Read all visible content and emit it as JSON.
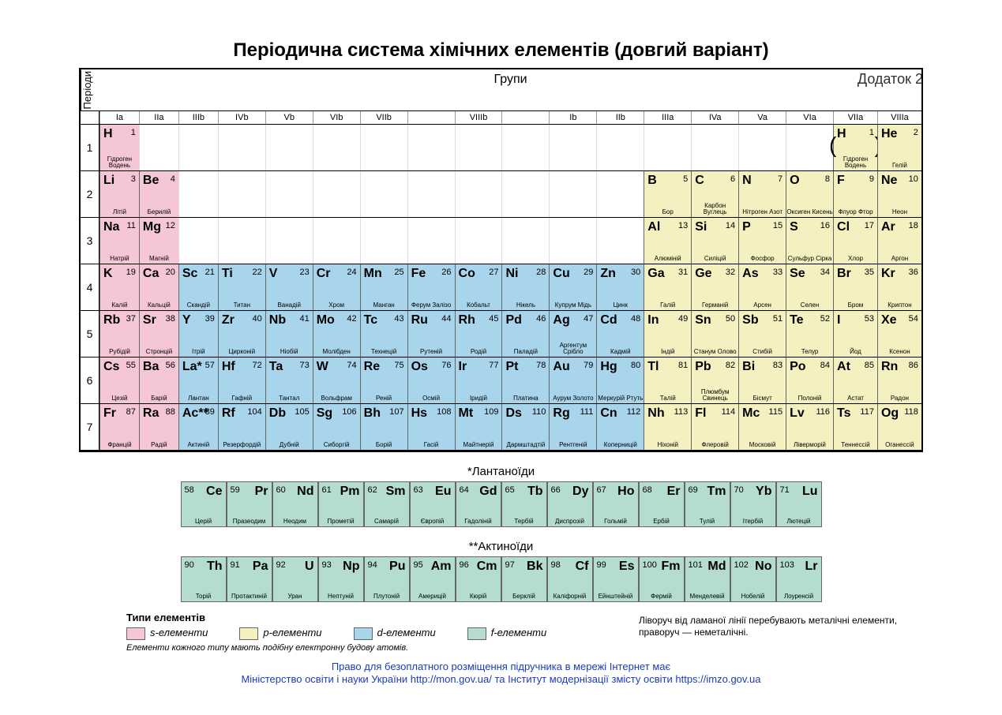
{
  "appendix": "Додаток 2",
  "title": "Періодична система хімічних елементів (довгий варіант)",
  "labels": {
    "periods": "Періоди",
    "groups": "Групи"
  },
  "colors": {
    "s": "#f4c6d7",
    "p": "#f5f0c0",
    "d": "#a8d5eb",
    "f": "#b4ddd0",
    "border": "#000000"
  },
  "group_headers": [
    "Ia",
    "IIa",
    "IIIb",
    "IVb",
    "Vb",
    "VIb",
    "VIIb",
    "",
    "VIIIb",
    "",
    "Ib",
    "IIb",
    "IIIa",
    "IVa",
    "Va",
    "VIa",
    "VIIa",
    "VIIIa"
  ],
  "group_widths": [
    50,
    50,
    50,
    60,
    60,
    60,
    60,
    60,
    60,
    60,
    60,
    60,
    60,
    60,
    60,
    60,
    56,
    56
  ],
  "periods": [
    1,
    2,
    3,
    4,
    5,
    6,
    7
  ],
  "elements": [
    {
      "p": 1,
      "g": 1,
      "z": 1,
      "sym": "H",
      "name": "Гідроген Водень",
      "cls": "s-el"
    },
    {
      "p": 1,
      "g": 17,
      "z": 1,
      "sym": "H",
      "name": "Гідроген Водень",
      "cls": "p-el",
      "paren": true
    },
    {
      "p": 1,
      "g": 18,
      "z": 2,
      "sym": "He",
      "name": "Гелій",
      "cls": "p-el"
    },
    {
      "p": 2,
      "g": 1,
      "z": 3,
      "sym": "Li",
      "name": "Літій",
      "cls": "s-el"
    },
    {
      "p": 2,
      "g": 2,
      "z": 4,
      "sym": "Be",
      "name": "Берилій",
      "cls": "s-el"
    },
    {
      "p": 2,
      "g": 13,
      "z": 5,
      "sym": "B",
      "name": "Бор",
      "cls": "p-el"
    },
    {
      "p": 2,
      "g": 14,
      "z": 6,
      "sym": "C",
      "name": "Карбон Вуглець",
      "cls": "p-el"
    },
    {
      "p": 2,
      "g": 15,
      "z": 7,
      "sym": "N",
      "name": "Нітроген Азот",
      "cls": "p-el"
    },
    {
      "p": 2,
      "g": 16,
      "z": 8,
      "sym": "O",
      "name": "Оксиген Кисень",
      "cls": "p-el"
    },
    {
      "p": 2,
      "g": 17,
      "z": 9,
      "sym": "F",
      "name": "Флуор Фтор",
      "cls": "p-el"
    },
    {
      "p": 2,
      "g": 18,
      "z": 10,
      "sym": "Ne",
      "name": "Неон",
      "cls": "p-el"
    },
    {
      "p": 3,
      "g": 1,
      "z": 11,
      "sym": "Na",
      "name": "Натрій",
      "cls": "s-el"
    },
    {
      "p": 3,
      "g": 2,
      "z": 12,
      "sym": "Mg",
      "name": "Магній",
      "cls": "s-el"
    },
    {
      "p": 3,
      "g": 13,
      "z": 13,
      "sym": "Al",
      "name": "Алюміній",
      "cls": "p-el"
    },
    {
      "p": 3,
      "g": 14,
      "z": 14,
      "sym": "Si",
      "name": "Силіцій",
      "cls": "p-el"
    },
    {
      "p": 3,
      "g": 15,
      "z": 15,
      "sym": "P",
      "name": "Фосфор",
      "cls": "p-el"
    },
    {
      "p": 3,
      "g": 16,
      "z": 16,
      "sym": "S",
      "name": "Сульфур Сірка",
      "cls": "p-el"
    },
    {
      "p": 3,
      "g": 17,
      "z": 17,
      "sym": "Cl",
      "name": "Хлор",
      "cls": "p-el"
    },
    {
      "p": 3,
      "g": 18,
      "z": 18,
      "sym": "Ar",
      "name": "Аргон",
      "cls": "p-el"
    },
    {
      "p": 4,
      "g": 1,
      "z": 19,
      "sym": "K",
      "name": "Калій",
      "cls": "s-el"
    },
    {
      "p": 4,
      "g": 2,
      "z": 20,
      "sym": "Ca",
      "name": "Кальцій",
      "cls": "s-el"
    },
    {
      "p": 4,
      "g": 3,
      "z": 21,
      "sym": "Sc",
      "name": "Скандій",
      "cls": "d-el"
    },
    {
      "p": 4,
      "g": 4,
      "z": 22,
      "sym": "Ti",
      "name": "Титан",
      "cls": "d-el"
    },
    {
      "p": 4,
      "g": 5,
      "z": 23,
      "sym": "V",
      "name": "Ванадій",
      "cls": "d-el"
    },
    {
      "p": 4,
      "g": 6,
      "z": 24,
      "sym": "Cr",
      "name": "Хром",
      "cls": "d-el"
    },
    {
      "p": 4,
      "g": 7,
      "z": 25,
      "sym": "Mn",
      "name": "Манган",
      "cls": "d-el"
    },
    {
      "p": 4,
      "g": 8,
      "z": 26,
      "sym": "Fe",
      "name": "Ферум Залізо",
      "cls": "d-el"
    },
    {
      "p": 4,
      "g": 9,
      "z": 27,
      "sym": "Co",
      "name": "Кобальт",
      "cls": "d-el"
    },
    {
      "p": 4,
      "g": 10,
      "z": 28,
      "sym": "Ni",
      "name": "Нікель",
      "cls": "d-el"
    },
    {
      "p": 4,
      "g": 11,
      "z": 29,
      "sym": "Cu",
      "name": "Купрум Мідь",
      "cls": "d-el"
    },
    {
      "p": 4,
      "g": 12,
      "z": 30,
      "sym": "Zn",
      "name": "Цинк",
      "cls": "d-el"
    },
    {
      "p": 4,
      "g": 13,
      "z": 31,
      "sym": "Ga",
      "name": "Галій",
      "cls": "p-el"
    },
    {
      "p": 4,
      "g": 14,
      "z": 32,
      "sym": "Ge",
      "name": "Германій",
      "cls": "p-el"
    },
    {
      "p": 4,
      "g": 15,
      "z": 33,
      "sym": "As",
      "name": "Арсен",
      "cls": "p-el"
    },
    {
      "p": 4,
      "g": 16,
      "z": 34,
      "sym": "Se",
      "name": "Селен",
      "cls": "p-el"
    },
    {
      "p": 4,
      "g": 17,
      "z": 35,
      "sym": "Br",
      "name": "Бром",
      "cls": "p-el"
    },
    {
      "p": 4,
      "g": 18,
      "z": 36,
      "sym": "Kr",
      "name": "Криптон",
      "cls": "p-el"
    },
    {
      "p": 5,
      "g": 1,
      "z": 37,
      "sym": "Rb",
      "name": "Рубідій",
      "cls": "s-el"
    },
    {
      "p": 5,
      "g": 2,
      "z": 38,
      "sym": "Sr",
      "name": "Стронцій",
      "cls": "s-el"
    },
    {
      "p": 5,
      "g": 3,
      "z": 39,
      "sym": "Y",
      "name": "Ітрій",
      "cls": "d-el"
    },
    {
      "p": 5,
      "g": 4,
      "z": 40,
      "sym": "Zr",
      "name": "Цирконій",
      "cls": "d-el"
    },
    {
      "p": 5,
      "g": 5,
      "z": 41,
      "sym": "Nb",
      "name": "Ніобій",
      "cls": "d-el"
    },
    {
      "p": 5,
      "g": 6,
      "z": 42,
      "sym": "Mo",
      "name": "Молібден",
      "cls": "d-el"
    },
    {
      "p": 5,
      "g": 7,
      "z": 43,
      "sym": "Tc",
      "name": "Технецій",
      "cls": "d-el"
    },
    {
      "p": 5,
      "g": 8,
      "z": 44,
      "sym": "Ru",
      "name": "Рутеній",
      "cls": "d-el"
    },
    {
      "p": 5,
      "g": 9,
      "z": 45,
      "sym": "Rh",
      "name": "Родій",
      "cls": "d-el"
    },
    {
      "p": 5,
      "g": 10,
      "z": 46,
      "sym": "Pd",
      "name": "Паладій",
      "cls": "d-el"
    },
    {
      "p": 5,
      "g": 11,
      "z": 47,
      "sym": "Ag",
      "name": "Аргентум Срібло",
      "cls": "d-el"
    },
    {
      "p": 5,
      "g": 12,
      "z": 48,
      "sym": "Cd",
      "name": "Кадмій",
      "cls": "d-el"
    },
    {
      "p": 5,
      "g": 13,
      "z": 49,
      "sym": "In",
      "name": "Індій",
      "cls": "p-el"
    },
    {
      "p": 5,
      "g": 14,
      "z": 50,
      "sym": "Sn",
      "name": "Станум Олово",
      "cls": "p-el"
    },
    {
      "p": 5,
      "g": 15,
      "z": 51,
      "sym": "Sb",
      "name": "Стибій",
      "cls": "p-el"
    },
    {
      "p": 5,
      "g": 16,
      "z": 52,
      "sym": "Te",
      "name": "Телур",
      "cls": "p-el"
    },
    {
      "p": 5,
      "g": 17,
      "z": 53,
      "sym": "I",
      "name": "Йод",
      "cls": "p-el"
    },
    {
      "p": 5,
      "g": 18,
      "z": 54,
      "sym": "Xe",
      "name": "Ксенон",
      "cls": "p-el"
    },
    {
      "p": 6,
      "g": 1,
      "z": 55,
      "sym": "Cs",
      "name": "Цезій",
      "cls": "s-el"
    },
    {
      "p": 6,
      "g": 2,
      "z": 56,
      "sym": "Ba",
      "name": "Барій",
      "cls": "s-el"
    },
    {
      "p": 6,
      "g": 3,
      "z": 57,
      "sym": "La*",
      "name": "Лантан",
      "cls": "d-el"
    },
    {
      "p": 6,
      "g": 4,
      "z": 72,
      "sym": "Hf",
      "name": "Гафній",
      "cls": "d-el"
    },
    {
      "p": 6,
      "g": 5,
      "z": 73,
      "sym": "Ta",
      "name": "Тантал",
      "cls": "d-el"
    },
    {
      "p": 6,
      "g": 6,
      "z": 74,
      "sym": "W",
      "name": "Вольфрам",
      "cls": "d-el"
    },
    {
      "p": 6,
      "g": 7,
      "z": 75,
      "sym": "Re",
      "name": "Реній",
      "cls": "d-el"
    },
    {
      "p": 6,
      "g": 8,
      "z": 76,
      "sym": "Os",
      "name": "Осмій",
      "cls": "d-el"
    },
    {
      "p": 6,
      "g": 9,
      "z": 77,
      "sym": "Ir",
      "name": "Іридій",
      "cls": "d-el"
    },
    {
      "p": 6,
      "g": 10,
      "z": 78,
      "sym": "Pt",
      "name": "Платина",
      "cls": "d-el"
    },
    {
      "p": 6,
      "g": 11,
      "z": 79,
      "sym": "Au",
      "name": "Аурум Золото",
      "cls": "d-el"
    },
    {
      "p": 6,
      "g": 12,
      "z": 80,
      "sym": "Hg",
      "name": "Меркурій Ртуть",
      "cls": "d-el"
    },
    {
      "p": 6,
      "g": 13,
      "z": 81,
      "sym": "Tl",
      "name": "Талій",
      "cls": "p-el"
    },
    {
      "p": 6,
      "g": 14,
      "z": 82,
      "sym": "Pb",
      "name": "Плюмбум Свинець",
      "cls": "p-el"
    },
    {
      "p": 6,
      "g": 15,
      "z": 83,
      "sym": "Bi",
      "name": "Бісмут",
      "cls": "p-el"
    },
    {
      "p": 6,
      "g": 16,
      "z": 84,
      "sym": "Po",
      "name": "Полоній",
      "cls": "p-el"
    },
    {
      "p": 6,
      "g": 17,
      "z": 85,
      "sym": "At",
      "name": "Астат",
      "cls": "p-el"
    },
    {
      "p": 6,
      "g": 18,
      "z": 86,
      "sym": "Rn",
      "name": "Радон",
      "cls": "p-el"
    },
    {
      "p": 7,
      "g": 1,
      "z": 87,
      "sym": "Fr",
      "name": "Францій",
      "cls": "s-el"
    },
    {
      "p": 7,
      "g": 2,
      "z": 88,
      "sym": "Ra",
      "name": "Радій",
      "cls": "s-el"
    },
    {
      "p": 7,
      "g": 3,
      "z": 89,
      "sym": "Ac**",
      "name": "Актиній",
      "cls": "d-el"
    },
    {
      "p": 7,
      "g": 4,
      "z": 104,
      "sym": "Rf",
      "name": "Резерфордій",
      "cls": "d-el"
    },
    {
      "p": 7,
      "g": 5,
      "z": 105,
      "sym": "Db",
      "name": "Дубній",
      "cls": "d-el"
    },
    {
      "p": 7,
      "g": 6,
      "z": 106,
      "sym": "Sg",
      "name": "Сиборгій",
      "cls": "d-el"
    },
    {
      "p": 7,
      "g": 7,
      "z": 107,
      "sym": "Bh",
      "name": "Борій",
      "cls": "d-el"
    },
    {
      "p": 7,
      "g": 8,
      "z": 108,
      "sym": "Hs",
      "name": "Гасій",
      "cls": "d-el"
    },
    {
      "p": 7,
      "g": 9,
      "z": 109,
      "sym": "Mt",
      "name": "Майтнерій",
      "cls": "d-el"
    },
    {
      "p": 7,
      "g": 10,
      "z": 110,
      "sym": "Ds",
      "name": "Дармштадтій",
      "cls": "d-el"
    },
    {
      "p": 7,
      "g": 11,
      "z": 111,
      "sym": "Rg",
      "name": "Рентгеній",
      "cls": "d-el"
    },
    {
      "p": 7,
      "g": 12,
      "z": 112,
      "sym": "Cn",
      "name": "Коперницій",
      "cls": "d-el"
    },
    {
      "p": 7,
      "g": 13,
      "z": 113,
      "sym": "Nh",
      "name": "Ніхоній",
      "cls": "p-el"
    },
    {
      "p": 7,
      "g": 14,
      "z": 114,
      "sym": "Fl",
      "name": "Флеровій",
      "cls": "p-el"
    },
    {
      "p": 7,
      "g": 15,
      "z": 115,
      "sym": "Mc",
      "name": "Московій",
      "cls": "p-el"
    },
    {
      "p": 7,
      "g": 16,
      "z": 116,
      "sym": "Lv",
      "name": "Ліверморій",
      "cls": "p-el"
    },
    {
      "p": 7,
      "g": 17,
      "z": 117,
      "sym": "Ts",
      "name": "Теннессій",
      "cls": "p-el"
    },
    {
      "p": 7,
      "g": 18,
      "z": 118,
      "sym": "Og",
      "name": "Оганессій",
      "cls": "p-el"
    }
  ],
  "lanthanoids_title": "*Лантаноїди",
  "lanthanoids": [
    {
      "z": 58,
      "sym": "Ce",
      "name": "Церій"
    },
    {
      "z": 59,
      "sym": "Pr",
      "name": "Празеодим"
    },
    {
      "z": 60,
      "sym": "Nd",
      "name": "Неодим"
    },
    {
      "z": 61,
      "sym": "Pm",
      "name": "Прометій"
    },
    {
      "z": 62,
      "sym": "Sm",
      "name": "Самарій"
    },
    {
      "z": 63,
      "sym": "Eu",
      "name": "Європій"
    },
    {
      "z": 64,
      "sym": "Gd",
      "name": "Гадоліній"
    },
    {
      "z": 65,
      "sym": "Tb",
      "name": "Тербій"
    },
    {
      "z": 66,
      "sym": "Dy",
      "name": "Диспрозій"
    },
    {
      "z": 67,
      "sym": "Ho",
      "name": "Гольмій"
    },
    {
      "z": 68,
      "sym": "Er",
      "name": "Ербій"
    },
    {
      "z": 69,
      "sym": "Tm",
      "name": "Тулій"
    },
    {
      "z": 70,
      "sym": "Yb",
      "name": "Ітербій"
    },
    {
      "z": 71,
      "sym": "Lu",
      "name": "Лютецій"
    }
  ],
  "actinoids_title": "**Актиноїди",
  "actinoids": [
    {
      "z": 90,
      "sym": "Th",
      "name": "Торій"
    },
    {
      "z": 91,
      "sym": "Pa",
      "name": "Протактиній"
    },
    {
      "z": 92,
      "sym": "U",
      "name": "Уран"
    },
    {
      "z": 93,
      "sym": "Np",
      "name": "Нептуній"
    },
    {
      "z": 94,
      "sym": "Pu",
      "name": "Плутоній"
    },
    {
      "z": 95,
      "sym": "Am",
      "name": "Америцій"
    },
    {
      "z": 96,
      "sym": "Cm",
      "name": "Кюрій"
    },
    {
      "z": 97,
      "sym": "Bk",
      "name": "Берклій"
    },
    {
      "z": 98,
      "sym": "Cf",
      "name": "Каліфорній"
    },
    {
      "z": 99,
      "sym": "Es",
      "name": "Ейнштейній"
    },
    {
      "z": 100,
      "sym": "Fm",
      "name": "Фермій"
    },
    {
      "z": 101,
      "sym": "Md",
      "name": "Менделевій"
    },
    {
      "z": 102,
      "sym": "No",
      "name": "Нобелій"
    },
    {
      "z": 103,
      "sym": "Lr",
      "name": "Лоуренсій"
    }
  ],
  "legend": {
    "title": "Типи елементів",
    "items": [
      {
        "cls": "s-el",
        "label": "s-елементи"
      },
      {
        "cls": "p-el",
        "label": "p-елементи"
      },
      {
        "cls": "d-el",
        "label": "d-елементи"
      },
      {
        "cls": "f-el",
        "label": "f-елементи"
      }
    ],
    "note": "Елементи кожного типу мають подібну електронну будову атомів."
  },
  "right_note": "Ліворуч від ламаної лінії перебувають металічні елементи, праворуч — неметалічні.",
  "footer": [
    "Право для безоплатного розміщення підручника в мережі Інтернет має",
    "Міністерство освіти і науки України http://mon.gov.ua/ та Інститут модернізації змісту освіти https://imzo.gov.ua"
  ]
}
